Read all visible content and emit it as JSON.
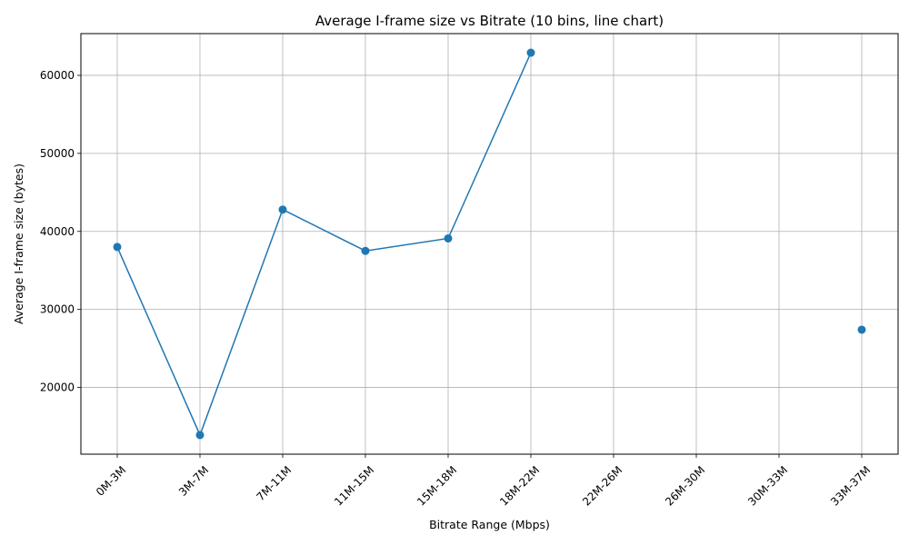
{
  "chart_data": {
    "type": "line",
    "title": "Average I-frame size vs Bitrate (10 bins, line chart)",
    "xlabel": "Bitrate Range (Mbps)",
    "ylabel": "Average I-frame size (bytes)",
    "categories": [
      "0M-3M",
      "3M-7M",
      "7M-11M",
      "11M-15M",
      "15M-18M",
      "18M-22M",
      "22M-26M",
      "26M-30M",
      "30M-33M",
      "33M-37M"
    ],
    "series": [
      {
        "values": [
          38000,
          13900,
          42800,
          37500,
          39100,
          62900,
          null,
          null,
          null,
          27400
        ],
        "color": "#1f77b4",
        "marker": "circle"
      }
    ],
    "ylim": [
      11450,
      65350
    ],
    "yticks": [
      20000,
      30000,
      40000,
      50000,
      60000
    ],
    "ytick_labels": [
      "20000",
      "30000",
      "40000",
      "50000",
      "60000"
    ],
    "grid": true,
    "legend": "none"
  }
}
